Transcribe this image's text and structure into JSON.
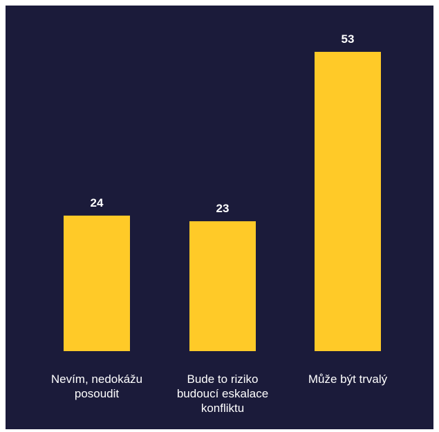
{
  "chart_data": {
    "type": "bar",
    "categories": [
      "Nevím, nedokážu posoudit",
      "Bude to riziko budoucí eskalace konfliktu",
      "Může být trvalý"
    ],
    "values": [
      24,
      23,
      53
    ],
    "data_labels": [
      "24",
      "23",
      "53"
    ],
    "ylim": [
      0,
      53
    ],
    "grid": false,
    "legend": "none",
    "colors": {
      "background": "#1b1b3a",
      "bar": "#ffca28",
      "text": "#ffffff"
    }
  }
}
